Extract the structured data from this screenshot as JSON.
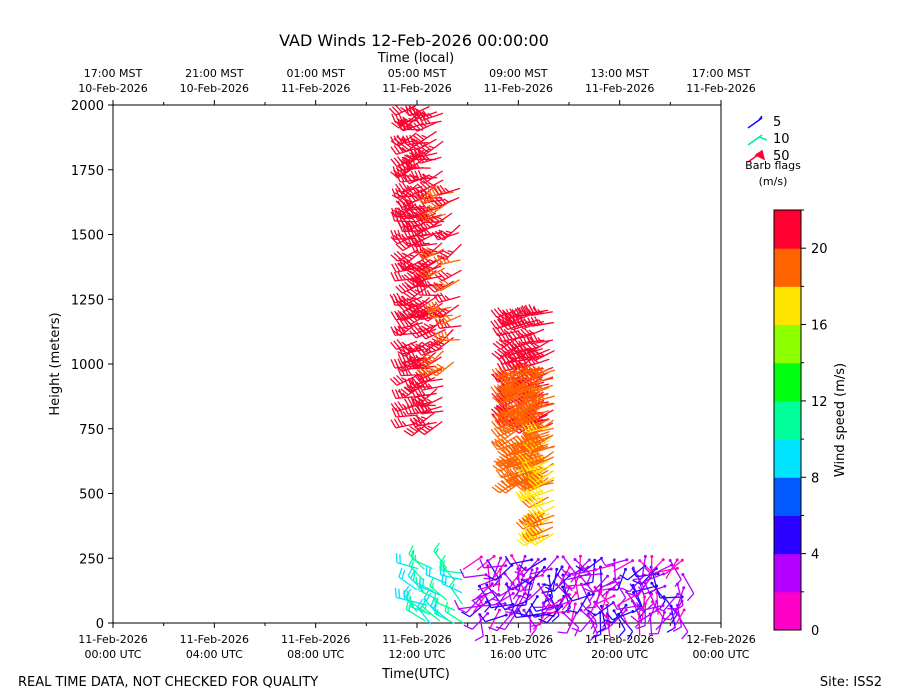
{
  "chart_data": {
    "type": "scatter",
    "subtype": "wind-barb",
    "title": "VAD Winds 12-Feb-2026 00:00:00",
    "top_axis_label": "Time (local)",
    "xlabel": "Time(UTC)",
    "ylabel": "Height (meters)",
    "footer_left": "REAL TIME DATA, NOT CHECKED FOR QUALITY",
    "footer_right": "Site: ISS2",
    "x_range_hours": [
      0,
      24
    ],
    "ylim": [
      0,
      2000
    ],
    "x_ticks": [
      {
        "h": 0,
        "l1": "11-Feb-2026",
        "l2": "00:00 UTC"
      },
      {
        "h": 4,
        "l1": "11-Feb-2026",
        "l2": "04:00 UTC"
      },
      {
        "h": 8,
        "l1": "11-Feb-2026",
        "l2": "08:00 UTC"
      },
      {
        "h": 12,
        "l1": "11-Feb-2026",
        "l2": "12:00 UTC"
      },
      {
        "h": 16,
        "l1": "11-Feb-2026",
        "l2": "16:00 UTC"
      },
      {
        "h": 20,
        "l1": "11-Feb-2026",
        "l2": "20:00 UTC"
      },
      {
        "h": 24,
        "l1": "12-Feb-2026",
        "l2": "00:00 UTC"
      }
    ],
    "top_ticks": [
      {
        "h": 0,
        "l1": "17:00 MST",
        "l2": "10-Feb-2026"
      },
      {
        "h": 4,
        "l1": "21:00 MST",
        "l2": "10-Feb-2026"
      },
      {
        "h": 8,
        "l1": "01:00 MST",
        "l2": "11-Feb-2026"
      },
      {
        "h": 12,
        "l1": "05:00 MST",
        "l2": "11-Feb-2026"
      },
      {
        "h": 16,
        "l1": "09:00 MST",
        "l2": "11-Feb-2026"
      },
      {
        "h": 20,
        "l1": "13:00 MST",
        "l2": "11-Feb-2026"
      },
      {
        "h": 24,
        "l1": "17:00 MST",
        "l2": "11-Feb-2026"
      }
    ],
    "y_ticks": [
      0,
      250,
      500,
      750,
      1000,
      1250,
      1500,
      1750,
      2000
    ],
    "legend": {
      "items": [
        {
          "label": "5",
          "color": "#1010ff"
        },
        {
          "label": "10",
          "color": "#00e8a0"
        },
        {
          "label": "50",
          "color": "#ff0030"
        }
      ],
      "title": "Barb flags",
      "units": "(m/s)"
    },
    "colorbar": {
      "label": "Wind speed (m/s)",
      "min": 0,
      "max": 22,
      "ticks": [
        0,
        4,
        8,
        12,
        16,
        20
      ],
      "colors": [
        "#ff00c8",
        "#b400ff",
        "#2a00ff",
        "#005aff",
        "#00e4ff",
        "#00ff9a",
        "#00ff10",
        "#8cff00",
        "#ffe600",
        "#ff6400",
        "#ff0030"
      ]
    },
    "clusters": [
      {
        "name": "early-morning",
        "h0": 12.0,
        "h1": 13.1,
        "dh": 0.25,
        "z0": 775,
        "z1": 2000,
        "dz": 35,
        "speed": 21,
        "dir": 250,
        "jitter": 0.5
      },
      {
        "name": "early-morning-upper",
        "h0": 13.1,
        "h1": 13.9,
        "dh": 0.3,
        "z0": 1000,
        "z1": 1700,
        "dz": 45,
        "speed": 20,
        "dir": 245,
        "jitter": 0.5
      },
      {
        "name": "low-early",
        "h0": 12.0,
        "h1": 13.8,
        "dh": 0.3,
        "z0": 0,
        "z1": 200,
        "dz": 40,
        "speed": 10,
        "dir": 300,
        "jitter": 0.6
      },
      {
        "name": "midday-core",
        "h0": 16.0,
        "h1": 17.4,
        "dh": 0.2,
        "z0": 780,
        "z1": 1230,
        "dz": 35,
        "speed": 21,
        "dir": 250,
        "jitter": 0.3
      },
      {
        "name": "midday-mid",
        "h0": 16.0,
        "h1": 17.4,
        "dh": 0.2,
        "z0": 560,
        "z1": 980,
        "dz": 32,
        "speed": 19,
        "dir": 245,
        "jitter": 0.3
      },
      {
        "name": "midday-lower",
        "h0": 17.0,
        "h1": 17.4,
        "dh": 0.2,
        "z0": 340,
        "z1": 780,
        "dz": 28,
        "speed": 18,
        "dir": 250,
        "jitter": 0.3
      },
      {
        "name": "surface-light",
        "h0": 14.5,
        "h1": 22.5,
        "dh": 0.25,
        "z0": 40,
        "z1": 280,
        "dz": 35,
        "speed": 3,
        "dir": 200,
        "jitter": 1.5
      }
    ]
  }
}
